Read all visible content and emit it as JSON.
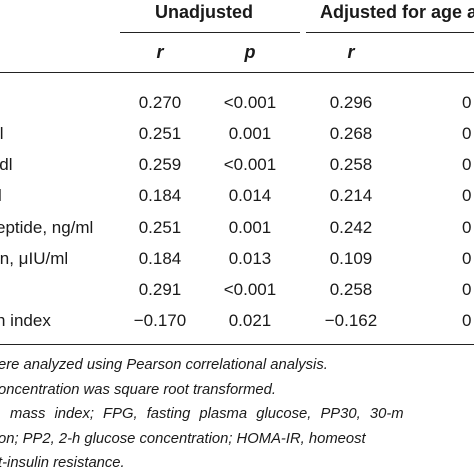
{
  "headers": {
    "unadjusted": "Unadjusted",
    "adjusted": "Adjusted for age a"
  },
  "subheaders": {
    "r1": "r",
    "p1": "p",
    "r2": "r"
  },
  "rows": [
    {
      "label": "",
      "r1": "0.270",
      "p1": "<0.001",
      "r2": "0.296",
      "p2": "0"
    },
    {
      "label": "ll",
      "r1": "0.251",
      "p1": "0.001",
      "r2": "0.268",
      "p2": "0"
    },
    {
      "label": "'dl",
      "r1": "0.259",
      "p1": "<0.001",
      "r2": "0.258",
      "p2": "0"
    },
    {
      "label": "l",
      "r1": "0.184",
      "p1": "0.014",
      "r2": "0.214",
      "p2": "0"
    },
    {
      "label": "eptide, ng/ml",
      "r1": "0.251",
      "p1": "0.001",
      "r2": "0.242",
      "p2": "0"
    },
    {
      "label": "in, μIU/ml",
      "r1": "0.184",
      "p1": "0.013",
      "r2": "0.109",
      "p2": "0"
    },
    {
      "label": "",
      "r1": "0.291",
      "p1": "<0.001",
      "r2": "0.258",
      "p2": "0"
    },
    {
      "label": "n index",
      "r1": "−0.170",
      "p1": "0.021",
      "r2": "−0.162",
      "p2": "0"
    }
  ],
  "footnotes": [
    "ere analyzed using Pearson correlational analysis.",
    "oncentration was square root transformed.",
    "mass index; FPG, fasting plasma glucose, PP30, 30-m",
    "on; PP2, 2-h glucose concentration; HOMA-IR, homeost",
    "t-insulin resistance."
  ]
}
